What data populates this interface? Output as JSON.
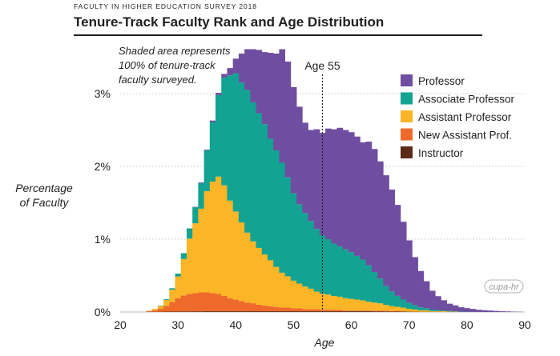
{
  "header": {
    "supertitle": "FACULTY IN HIGHER EDUCATION SURVEY 2018",
    "title": "Tenure-Track Faculty Rank and Age Distribution"
  },
  "annotation": {
    "note_lines": [
      "Shaded area represents",
      "100% of tenure-track",
      "faculty surveyed."
    ],
    "marker_label": "Age 55",
    "marker_x": 55
  },
  "logo_text": "cupa-hr",
  "colors": {
    "Professor": "#6f4ea1",
    "Associate Professor": "#13a392",
    "Assistant Professor": "#fbb526",
    "New Assistant Prof.": "#ee6a2a",
    "Instructor": "#5a2a17"
  },
  "chart_data": {
    "type": "area",
    "stacked": true,
    "xlabel": "Age",
    "ylabel_lines": [
      "Percentage",
      "of Faculty"
    ],
    "xlim": [
      20,
      90
    ],
    "ylim": [
      0,
      3.2
    ],
    "x_ticks": [
      "20",
      "30",
      "40",
      "50",
      "60",
      "70",
      "80",
      "90"
    ],
    "y_ticks": [
      {
        "value": 0,
        "label": "0%"
      },
      {
        "value": 1,
        "label": "1%"
      },
      {
        "value": 2,
        "label": "2%"
      },
      {
        "value": 3,
        "label": "3%"
      }
    ],
    "grid": "horizontal dotted",
    "legend_position": "top-right",
    "x": [
      25,
      26,
      27,
      28,
      29,
      30,
      31,
      32,
      33,
      34,
      35,
      36,
      37,
      38,
      39,
      40,
      41,
      42,
      43,
      44,
      45,
      46,
      47,
      48,
      49,
      50,
      51,
      52,
      53,
      54,
      55,
      56,
      57,
      58,
      59,
      60,
      61,
      62,
      63,
      64,
      65,
      66,
      67,
      68,
      69,
      70,
      71,
      72,
      73,
      74,
      75,
      76,
      77,
      78,
      79,
      80,
      81,
      82,
      83,
      84,
      85,
      86,
      87,
      88,
      89
    ],
    "series": [
      {
        "name": "Instructor",
        "values": [
          0.002,
          0.003,
          0.004,
          0.005,
          0.006,
          0.007,
          0.008,
          0.008,
          0.009,
          0.009,
          0.01,
          0.01,
          0.01,
          0.01,
          0.01,
          0.01,
          0.01,
          0.01,
          0.01,
          0.01,
          0.01,
          0.01,
          0.01,
          0.01,
          0.01,
          0.01,
          0.01,
          0.01,
          0.01,
          0.01,
          0.01,
          0.01,
          0.01,
          0.01,
          0.01,
          0.01,
          0.01,
          0.01,
          0.01,
          0.009,
          0.009,
          0.008,
          0.007,
          0.006,
          0.005,
          0.004,
          0.004,
          0.003,
          0.003,
          0.002,
          0.002,
          0.001,
          0.001,
          0.001,
          0.001,
          0,
          0,
          0,
          0,
          0,
          0,
          0,
          0,
          0,
          0
        ]
      },
      {
        "name": "New Assistant Prof.",
        "values": [
          0.01,
          0.02,
          0.04,
          0.08,
          0.13,
          0.18,
          0.22,
          0.24,
          0.25,
          0.26,
          0.26,
          0.25,
          0.24,
          0.21,
          0.18,
          0.16,
          0.14,
          0.12,
          0.11,
          0.09,
          0.08,
          0.07,
          0.06,
          0.05,
          0.05,
          0.04,
          0.04,
          0.03,
          0.03,
          0.03,
          0.02,
          0.02,
          0.02,
          0.02,
          0.01,
          0.01,
          0.01,
          0.01,
          0.01,
          0.01,
          0.01,
          0.01,
          0.005,
          0.005,
          0.005,
          0,
          0,
          0,
          0,
          0,
          0,
          0,
          0,
          0,
          0,
          0,
          0,
          0,
          0,
          0,
          0,
          0,
          0,
          0,
          0
        ]
      },
      {
        "name": "Assistant Professor",
        "values": [
          0.005,
          0.02,
          0.04,
          0.08,
          0.17,
          0.3,
          0.5,
          0.76,
          0.96,
          1.15,
          1.39,
          1.53,
          1.61,
          1.52,
          1.34,
          1.21,
          1.08,
          0.96,
          0.85,
          0.78,
          0.7,
          0.63,
          0.55,
          0.48,
          0.43,
          0.38,
          0.34,
          0.31,
          0.28,
          0.24,
          0.22,
          0.21,
          0.19,
          0.18,
          0.17,
          0.16,
          0.15,
          0.14,
          0.12,
          0.11,
          0.1,
          0.08,
          0.07,
          0.06,
          0.05,
          0.04,
          0.03,
          0.02,
          0.02,
          0.01,
          0.01,
          0.01,
          0.005,
          0.005,
          0,
          0,
          0,
          0,
          0,
          0,
          0,
          0,
          0,
          0,
          0
        ]
      },
      {
        "name": "Associate Professor",
        "values": [
          0,
          0,
          0.005,
          0.01,
          0.02,
          0.04,
          0.08,
          0.14,
          0.22,
          0.35,
          0.56,
          0.82,
          1.12,
          1.48,
          1.72,
          1.9,
          1.92,
          1.96,
          1.91,
          1.85,
          1.79,
          1.67,
          1.6,
          1.51,
          1.36,
          1.2,
          1.09,
          1.01,
          0.93,
          0.86,
          0.8,
          0.76,
          0.72,
          0.69,
          0.67,
          0.64,
          0.6,
          0.56,
          0.5,
          0.42,
          0.34,
          0.26,
          0.2,
          0.15,
          0.11,
          0.08,
          0.06,
          0.04,
          0.03,
          0.02,
          0.015,
          0.01,
          0.008,
          0.005,
          0.004,
          0.003,
          0.002,
          0.001,
          0,
          0,
          0,
          0,
          0,
          0,
          0
        ]
      },
      {
        "name": "Professor",
        "values": [
          0,
          0,
          0,
          0,
          0,
          0,
          0,
          0,
          0.005,
          0.01,
          0.01,
          0.02,
          0.03,
          0.05,
          0.1,
          0.2,
          0.4,
          0.56,
          0.73,
          0.87,
          0.99,
          1.18,
          1.33,
          1.56,
          1.59,
          1.46,
          1.34,
          1.24,
          1.25,
          1.37,
          1.41,
          1.52,
          1.57,
          1.63,
          1.64,
          1.65,
          1.64,
          1.61,
          1.7,
          1.69,
          1.61,
          1.52,
          1.4,
          1.25,
          1.07,
          0.86,
          0.66,
          0.5,
          0.37,
          0.26,
          0.19,
          0.14,
          0.1,
          0.08,
          0.06,
          0.05,
          0.04,
          0.03,
          0.025,
          0.02,
          0.015,
          0.01,
          0.008,
          0.005,
          0.003
        ]
      }
    ],
    "legend_order": [
      "Professor",
      "Associate Professor",
      "Assistant Professor",
      "New Assistant Prof.",
      "Instructor"
    ]
  }
}
